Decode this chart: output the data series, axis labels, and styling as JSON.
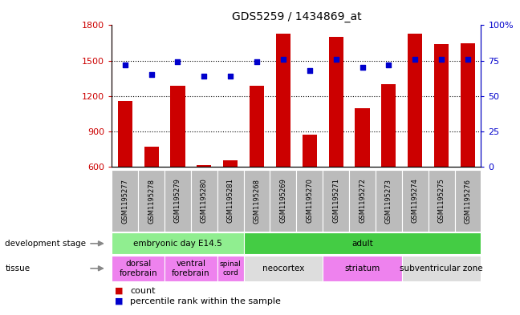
{
  "title": "GDS5259 / 1434869_at",
  "samples": [
    "GSM1195277",
    "GSM1195278",
    "GSM1195279",
    "GSM1195280",
    "GSM1195281",
    "GSM1195268",
    "GSM1195269",
    "GSM1195270",
    "GSM1195271",
    "GSM1195272",
    "GSM1195273",
    "GSM1195274",
    "GSM1195275",
    "GSM1195276"
  ],
  "counts": [
    1160,
    770,
    1290,
    615,
    655,
    1290,
    1730,
    870,
    1700,
    1100,
    1300,
    1730,
    1640,
    1650
  ],
  "percentiles": [
    72,
    65,
    74,
    64,
    64,
    74,
    76,
    68,
    76,
    70,
    72,
    76,
    76,
    76
  ],
  "ylim_left": [
    600,
    1800
  ],
  "ylim_right": [
    0,
    100
  ],
  "yticks_left": [
    600,
    900,
    1200,
    1500,
    1800
  ],
  "yticks_right": [
    0,
    25,
    50,
    75,
    100
  ],
  "bar_color": "#cc0000",
  "dot_color": "#0000cc",
  "dev_stage_groups": [
    {
      "label": "embryonic day E14.5",
      "start": 0,
      "end": 5,
      "color": "#90ee90"
    },
    {
      "label": "adult",
      "start": 5,
      "end": 14,
      "color": "#44cc44"
    }
  ],
  "tissue_groups": [
    {
      "label": "dorsal\nforebrain",
      "start": 0,
      "end": 2,
      "color": "#ee82ee"
    },
    {
      "label": "ventral\nforebrain",
      "start": 2,
      "end": 4,
      "color": "#ee82ee"
    },
    {
      "label": "spinal\ncord",
      "start": 4,
      "end": 5,
      "color": "#ee82ee"
    },
    {
      "label": "neocortex",
      "start": 5,
      "end": 8,
      "color": "#dddddd"
    },
    {
      "label": "striatum",
      "start": 8,
      "end": 11,
      "color": "#ee82ee"
    },
    {
      "label": "subventricular zone",
      "start": 11,
      "end": 14,
      "color": "#dddddd"
    }
  ],
  "label_bg_color": "#bbbbbb",
  "count_label": "count",
  "percentile_label": "percentile rank within the sample"
}
